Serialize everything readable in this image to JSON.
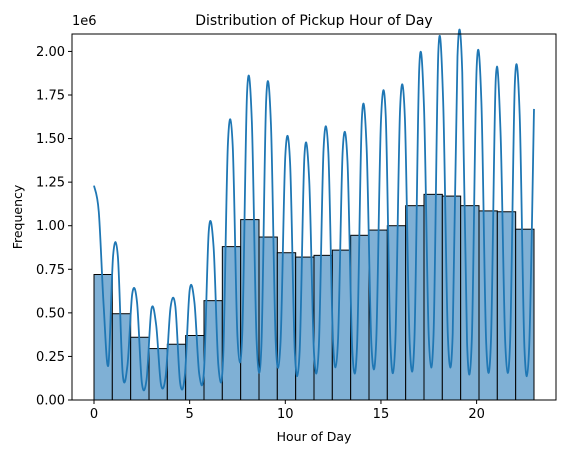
{
  "chart_data": {
    "type": "bar",
    "title": "Distribution of Pickup Hour of Day",
    "xlabel": "Hour of Day",
    "ylabel": "Frequency",
    "y_offset_label": "1e6",
    "xlim": [
      -1.15,
      24.15
    ],
    "ylim": [
      0,
      2100000
    ],
    "x_ticks": [
      0,
      5,
      10,
      15,
      20
    ],
    "y_ticks": [
      0,
      250000,
      500000,
      750000,
      1000000,
      1250000,
      1500000,
      1750000,
      2000000
    ],
    "y_tick_labels": [
      "0.00",
      "0.25",
      "0.50",
      "0.75",
      "1.00",
      "1.25",
      "1.50",
      "1.75",
      "2.00"
    ],
    "bin_edges": [
      0,
      0.958,
      1.917,
      2.875,
      3.833,
      4.792,
      5.75,
      6.708,
      7.667,
      8.625,
      9.583,
      10.542,
      11.5,
      12.458,
      13.417,
      14.375,
      15.333,
      16.292,
      17.25,
      18.208,
      19.167,
      20.125,
      21.083,
      22.042,
      23
    ],
    "bar_values": [
      720000,
      495000,
      360000,
      295000,
      320000,
      370000,
      570000,
      880000,
      1035000,
      935000,
      845000,
      820000,
      830000,
      860000,
      945000,
      975000,
      1000000,
      1115000,
      1180000,
      1170000,
      1115000,
      1085000,
      1080000,
      980000
    ],
    "kde_x": [
      0,
      0.25,
      0.5,
      0.75,
      1,
      1.25,
      1.5,
      1.75,
      2,
      2.25,
      2.5,
      2.75,
      3,
      3.25,
      3.5,
      3.75,
      4,
      4.25,
      4.5,
      4.75,
      5,
      5.25,
      5.5,
      5.75,
      6,
      6.25,
      6.5,
      6.75,
      7,
      7.25,
      7.5,
      7.75,
      8,
      8.25,
      8.5,
      8.75,
      9,
      9.25,
      9.5,
      9.75,
      10,
      10.25,
      10.5,
      10.75,
      11,
      11.25,
      11.5,
      11.75,
      12,
      12.25,
      12.5,
      12.75,
      13,
      13.25,
      13.5,
      13.75,
      14,
      14.25,
      14.5,
      14.75,
      15,
      15.25,
      15.5,
      15.75,
      16,
      16.25,
      16.5,
      16.75,
      17,
      17.25,
      17.5,
      17.75,
      18,
      18.25,
      18.5,
      18.75,
      19,
      19.25,
      19.5,
      19.75,
      20,
      20.25,
      20.5,
      20.75,
      21,
      21.25,
      21.5,
      21.75,
      22,
      22.25,
      22.5,
      22.75,
      23
    ],
    "kde_y": [
      1230000,
      1080000,
      550000,
      200000,
      830000,
      820000,
      150000,
      200000,
      610000,
      560000,
      100000,
      120000,
      520000,
      430000,
      90000,
      140000,
      530000,
      540000,
      100000,
      140000,
      630000,
      560000,
      150000,
      170000,
      970000,
      880000,
      200000,
      240000,
      1470000,
      1460000,
      360000,
      380000,
      1760000,
      1600000,
      340000,
      310000,
      1720000,
      1580000,
      330000,
      330000,
      1400000,
      1360000,
      270000,
      280000,
      1400000,
      1260000,
      270000,
      300000,
      1440000,
      1420000,
      320000,
      330000,
      1430000,
      1370000,
      290000,
      310000,
      1610000,
      1450000,
      320000,
      330000,
      1600000,
      1630000,
      310000,
      330000,
      1670000,
      1620000,
      330000,
      350000,
      1900000,
      1680000,
      360000,
      380000,
      2000000,
      1720000,
      360000,
      380000,
      1970000,
      1880000,
      330000,
      350000,
      1900000,
      1710000,
      330000,
      340000,
      1840000,
      1540000,
      320000,
      330000,
      1820000,
      1640000,
      300000,
      310000,
      1670000
    ],
    "colors": {
      "bar_fill": "#7fb0d5",
      "bar_edge": "#000000",
      "kde_line": "#1f77b4"
    }
  }
}
